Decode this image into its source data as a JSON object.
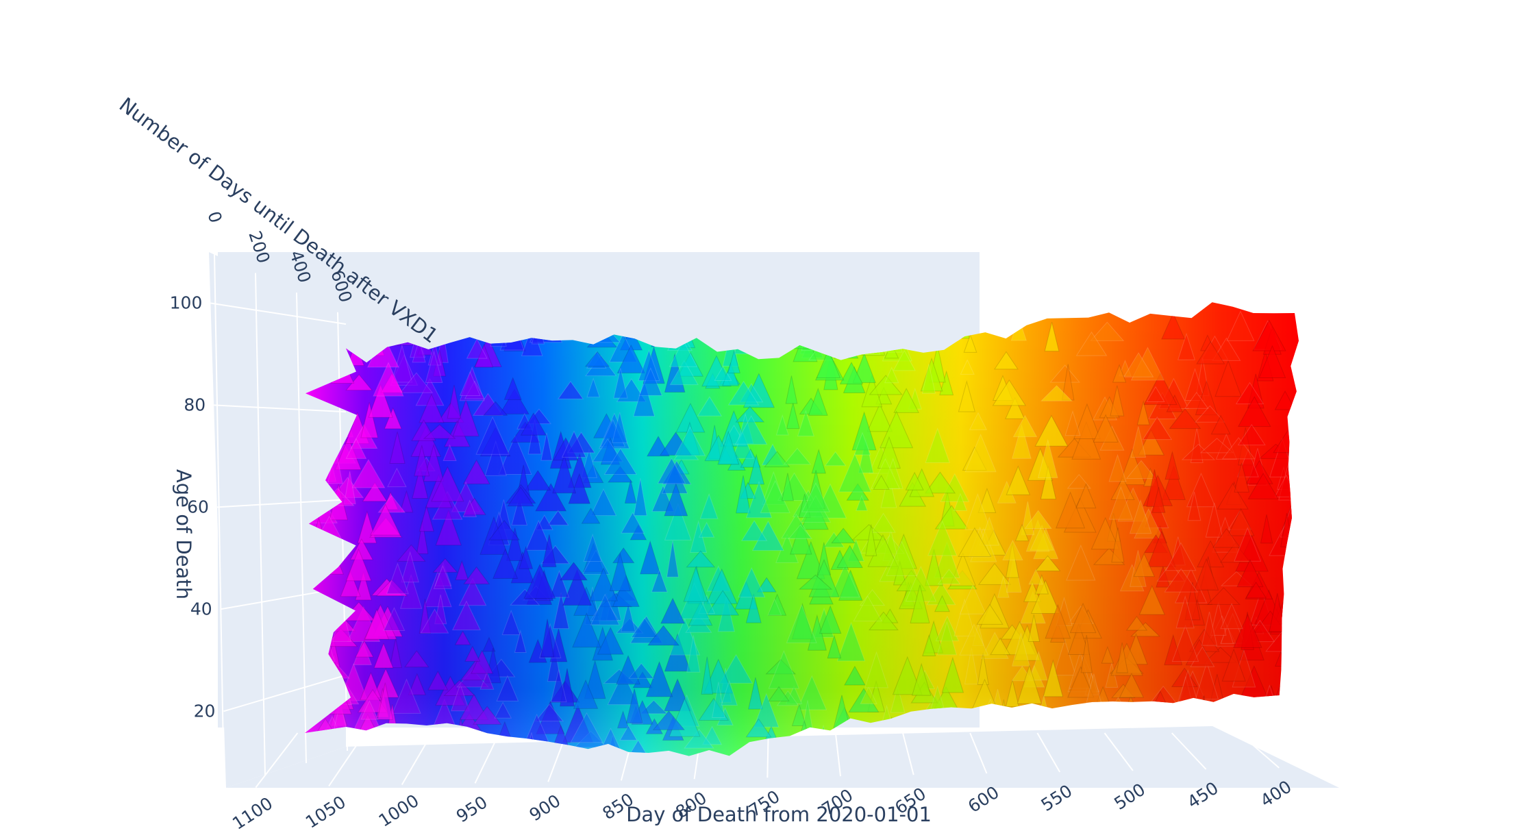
{
  "chart_data": {
    "type": "surface3d",
    "title": "",
    "x_axis": {
      "title": "Day of Death from 2020-01-01",
      "ticks": [
        "1100",
        "1050",
        "1000",
        "950",
        "900",
        "850",
        "800",
        "750",
        "700",
        "650",
        "600",
        "550",
        "500",
        "450",
        "400"
      ],
      "range": [
        380,
        1110
      ],
      "reversed": true
    },
    "y_axis": {
      "title": "Number of Days until Death after VXD1",
      "ticks": [
        "0",
        "200",
        "400",
        "600"
      ],
      "range": [
        0,
        700
      ]
    },
    "z_axis": {
      "title": "Age of Death",
      "ticks": [
        "20",
        "40",
        "60",
        "80",
        "100"
      ],
      "range": [
        5,
        110
      ]
    },
    "surface": {
      "colorscale": "rainbow (x-mapped)",
      "colorscale_stops": [
        "#ff0000",
        "#ff8000",
        "#ffff00",
        "#80ff00",
        "#00ff80",
        "#00ffff",
        "#0080ff",
        "#0000ff",
        "#8000ff",
        "#ff00ff"
      ],
      "x_extent": [
        390,
        1080
      ],
      "z_extent": [
        12,
        100
      ],
      "texture": "spiky / noisy"
    },
    "grid": true,
    "pane_color": "#e5ecf6",
    "legend": "none"
  }
}
